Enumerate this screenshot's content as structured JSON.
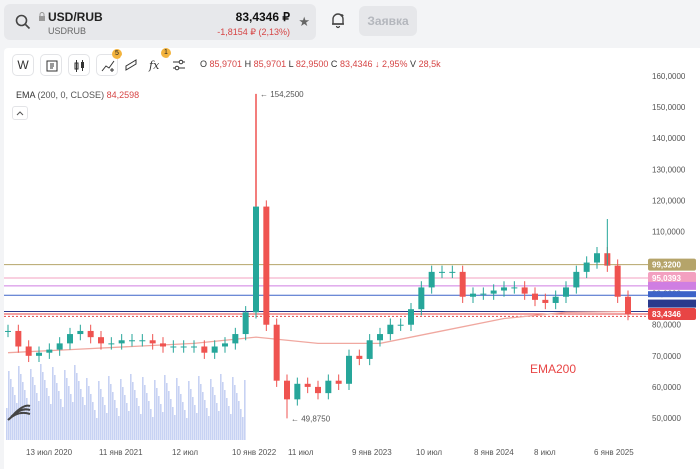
{
  "header": {
    "symbol": "USD/RUB",
    "subtitle": "USDRUB",
    "price": "83,4346 ₽",
    "change": "-1,8154 ₽ (2,13%)",
    "order_button": "Заявка"
  },
  "toolbar": {
    "interval": "W",
    "indicators_badge": "5",
    "fx_badge": "1"
  },
  "ohlc": {
    "o_label": "O",
    "o": "85,9701",
    "h_label": "H",
    "h": "85,9701",
    "l_label": "L",
    "l": "82,9500",
    "c_label": "C",
    "c": "83,4346",
    "chg": "↓ 2,95%",
    "v_label": "V",
    "v": "28,5k"
  },
  "ema": {
    "label": "EMA",
    "params": "(200, 0, CLOSE)",
    "value": "84,2598"
  },
  "colors": {
    "up": "#26a69a",
    "down": "#ef5350",
    "ema": "#f0a8a0",
    "volume": "#c7d2f3"
  },
  "chart_data": {
    "type": "candlestick",
    "ylim": [
      45,
      165
    ],
    "y_ticks": [
      "160,0000",
      "150,0000",
      "140,0000",
      "130,0000",
      "120,0000",
      "110,0000",
      "100,0000",
      "90,0000",
      "80,0000",
      "70,0000",
      "60,0000",
      "50,0000"
    ],
    "x_ticks": [
      "13 июл 2020",
      "11 янв 2021",
      "12 июл",
      "10 янв 2022",
      "11 июл",
      "9 янв 2023",
      "10 июл",
      "8 янв 2024",
      "8 июл",
      "6 янв 2025"
    ],
    "close_series": [
      [
        "2020-03",
        78
      ],
      [
        "2020-04",
        73
      ],
      [
        "2020-05",
        70
      ],
      [
        "2020-06",
        71
      ],
      [
        "2020-07",
        72
      ],
      [
        "2020-08",
        74
      ],
      [
        "2020-09",
        77
      ],
      [
        "2020-10",
        78
      ],
      [
        "2020-11",
        76
      ],
      [
        "2020-12",
        74
      ],
      [
        "2021-01",
        74
      ],
      [
        "2021-02",
        75
      ],
      [
        "2021-03",
        75
      ],
      [
        "2021-04",
        75
      ],
      [
        "2021-05",
        74
      ],
      [
        "2021-06",
        73
      ],
      [
        "2021-07",
        73
      ],
      [
        "2021-08",
        73
      ],
      [
        "2021-09",
        73
      ],
      [
        "2021-10",
        71
      ],
      [
        "2021-11",
        73
      ],
      [
        "2021-12",
        74
      ],
      [
        "2022-01",
        77
      ],
      [
        "2022-02",
        84
      ],
      [
        "2022-03",
        118
      ],
      [
        "2022-04",
        80
      ],
      [
        "2022-05",
        62
      ],
      [
        "2022-06",
        56
      ],
      [
        "2022-07",
        61
      ],
      [
        "2022-08",
        60
      ],
      [
        "2022-09",
        58
      ],
      [
        "2022-10",
        62
      ],
      [
        "2022-11",
        61
      ],
      [
        "2022-12",
        70
      ],
      [
        "2023-01",
        69
      ],
      [
        "2023-02",
        75
      ],
      [
        "2023-03",
        77
      ],
      [
        "2023-04",
        80
      ],
      [
        "2023-05",
        80
      ],
      [
        "2023-06",
        85
      ],
      [
        "2023-07",
        92
      ],
      [
        "2023-08",
        97
      ],
      [
        "2023-09",
        97
      ],
      [
        "2023-10",
        97
      ],
      [
        "2023-11",
        89
      ],
      [
        "2023-12",
        90
      ],
      [
        "2024-01",
        90
      ],
      [
        "2024-02",
        91
      ],
      [
        "2024-03",
        92
      ],
      [
        "2024-04",
        92
      ],
      [
        "2024-05",
        90
      ],
      [
        "2024-06",
        88
      ],
      [
        "2024-07",
        87
      ],
      [
        "2024-08",
        89
      ],
      [
        "2024-09",
        92
      ],
      [
        "2024-10",
        97
      ],
      [
        "2024-11",
        100
      ],
      [
        "2024-12",
        103
      ],
      [
        "2025-01",
        99
      ],
      [
        "2025-02",
        89
      ],
      [
        "2025-03",
        83.43
      ]
    ],
    "ema_series": [
      [
        "2020-03",
        71
      ],
      [
        "2020-09",
        72
      ],
      [
        "2021-03",
        73
      ],
      [
        "2021-09",
        74
      ],
      [
        "2022-03",
        76
      ],
      [
        "2022-09",
        74
      ],
      [
        "2023-03",
        74
      ],
      [
        "2023-09",
        78
      ],
      [
        "2024-03",
        82
      ],
      [
        "2024-09",
        84
      ],
      [
        "2025-03",
        84.26
      ]
    ],
    "high": {
      "value": "154,2500",
      "label": "← 154,2500"
    },
    "low": {
      "value": "49,8750",
      "label": "← 49,8750"
    },
    "levels": [
      {
        "value": 99.32,
        "label": "99,3200",
        "color": "#b5a46a"
      },
      {
        "value": 95.0393,
        "label": "95,0393",
        "color": "#f3a0c0"
      },
      {
        "value": 92.5,
        "label": "",
        "color": "#cf7ee2"
      },
      {
        "value": 89.5,
        "label": "",
        "color": "#3d63c8"
      },
      {
        "value": 84.26,
        "label": "",
        "color": "#2b3a8c"
      },
      {
        "value": 83.4346,
        "label": "83,4346",
        "color": "#e84545"
      }
    ],
    "annotation": "EMA200"
  }
}
